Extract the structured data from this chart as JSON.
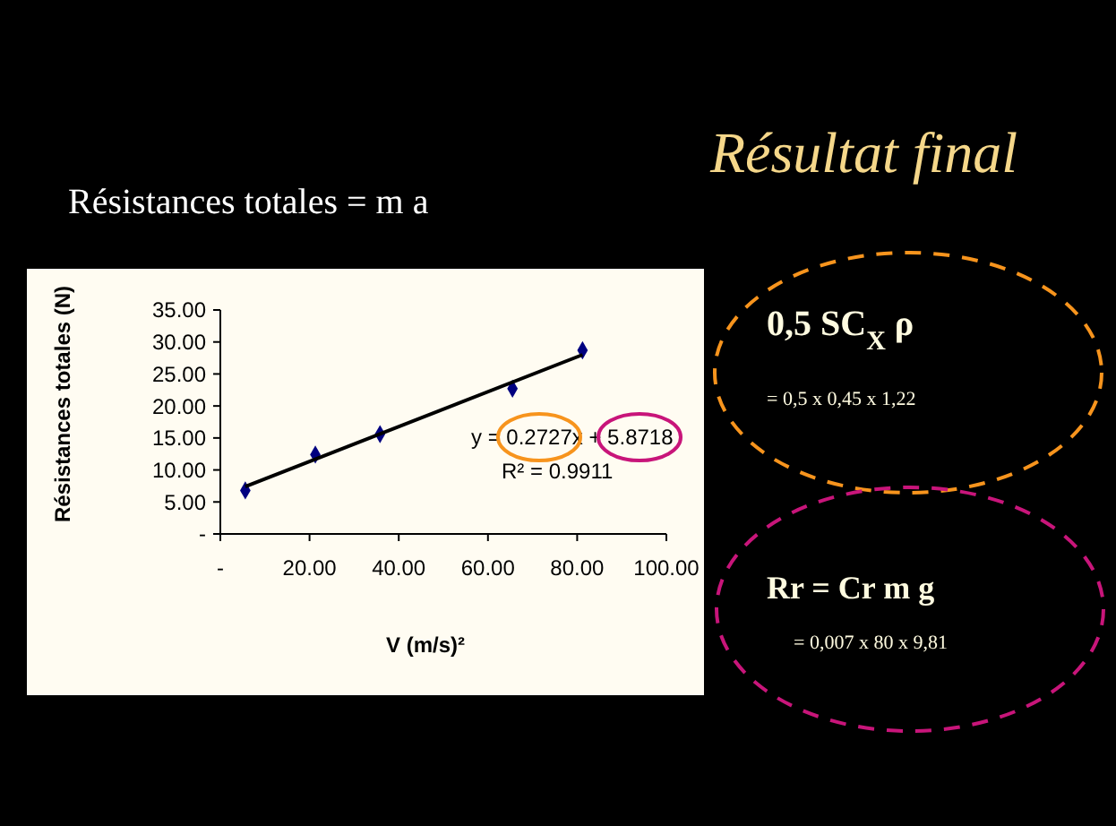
{
  "chart_data": {
    "type": "scatter",
    "title": "Résultat final",
    "subtitle": "Résistances totales = m a",
    "xlabel": "V (m/s)²",
    "ylabel": "Résistances totales (N)",
    "series": [
      {
        "color": "#000080",
        "marker": "diamond",
        "x": [
          5.6,
          21.3,
          35.8,
          65.5,
          81.2
        ],
        "values": [
          6.8,
          12.4,
          15.6,
          22.7,
          28.7
        ]
      },
      {
        "type": "line",
        "color": "#000000",
        "marker": "none",
        "x": [
          5.6,
          81.2
        ],
        "values": [
          7.4,
          28.0
        ]
      }
    ],
    "xlim": [
      0,
      100
    ],
    "xticks": [
      {
        "value": 0,
        "label": "-"
      },
      {
        "value": 20,
        "label": "20.00"
      },
      {
        "value": 40,
        "label": "40.00"
      },
      {
        "value": 60,
        "label": "60.00"
      },
      {
        "value": 80,
        "label": "80.00"
      },
      {
        "value": 100,
        "label": "100.00"
      }
    ],
    "ylim": [
      0,
      35
    ],
    "yticks": [
      {
        "value": 0,
        "label": "-"
      },
      {
        "value": 5,
        "label": "5.00"
      },
      {
        "value": 10,
        "label": "10.00"
      },
      {
        "value": 15,
        "label": "15.00"
      },
      {
        "value": 20,
        "label": "20.00"
      },
      {
        "value": 25,
        "label": "25.00"
      },
      {
        "value": 30,
        "label": "30.00"
      },
      {
        "value": 35,
        "label": "35.00"
      }
    ],
    "grid": false,
    "annotations": [
      "y = 0.2727x + 5.8718",
      "R² = 0.9911",
      "0,5 SC$_{X}$ ρ",
      "= 0,5 x 0,45 x 1,22",
      "Rr = Cr m g",
      "= 0,007 x 80 x 9,81"
    ]
  }
}
